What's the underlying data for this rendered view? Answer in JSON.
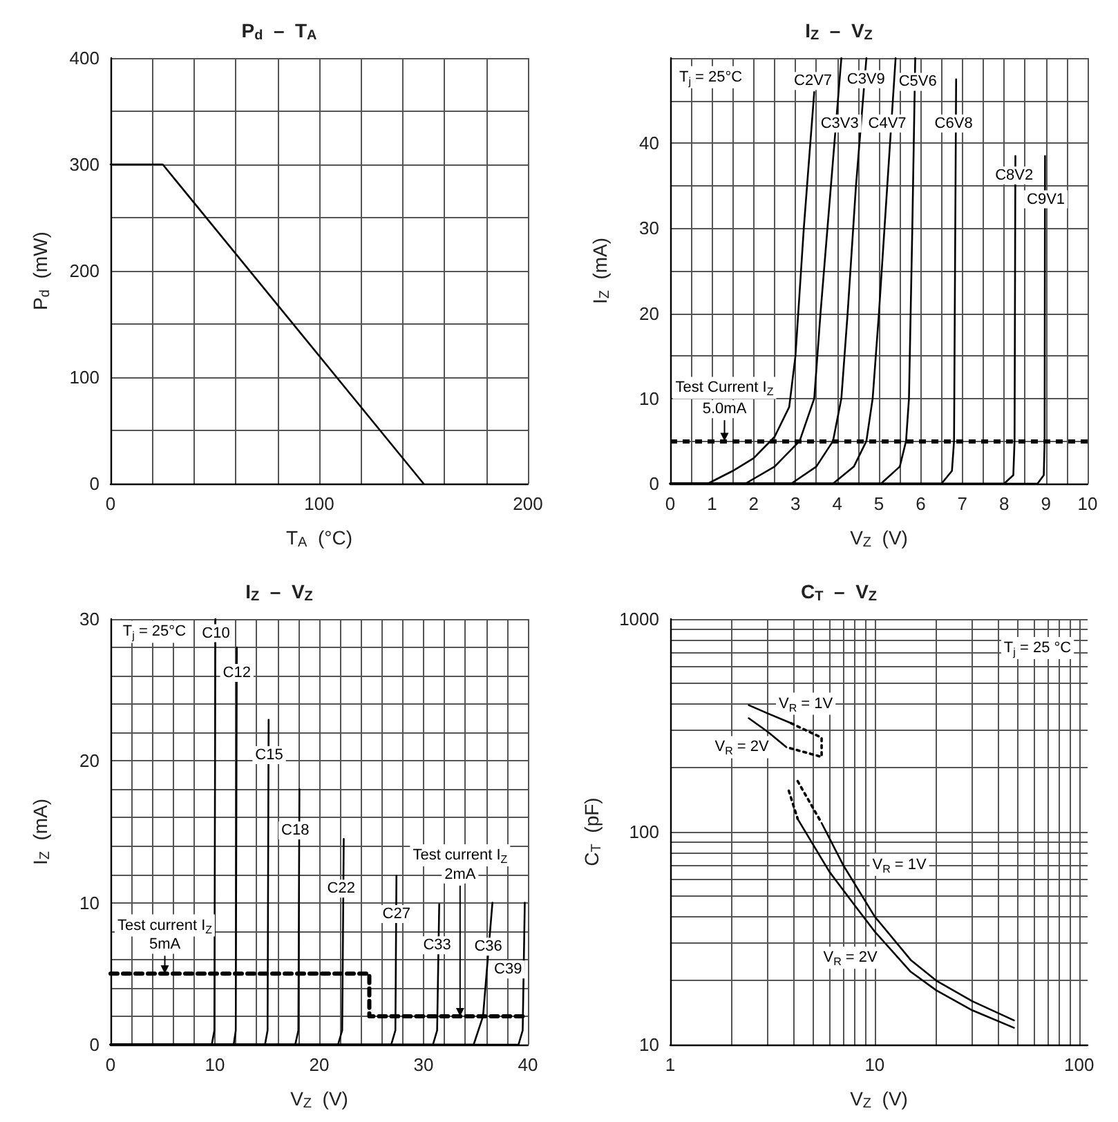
{
  "chart_data": [
    {
      "type": "line",
      "title": "P$_{d}$  –  T$_{A}$",
      "xlabel": "T$_{A}$  (°C)",
      "ylabel": "P$_{d}$  (mW)",
      "marker": "none",
      "grid": true,
      "series": [
        {
          "color": "#000000",
          "line_style": "solid",
          "x": [
            0,
            25,
            150
          ],
          "values": [
            300,
            300,
            0
          ]
        }
      ],
      "xlim": [
        0,
        200
      ],
      "xticks": [
        0,
        {
          "value": 20,
          "label": null
        },
        {
          "value": 40,
          "label": null
        },
        {
          "value": 60,
          "label": null
        },
        {
          "value": 80,
          "label": null
        },
        100,
        {
          "value": 120,
          "label": null
        },
        {
          "value": 140,
          "label": null
        },
        {
          "value": 160,
          "label": null
        },
        {
          "value": 180,
          "label": null
        },
        200
      ],
      "ylim": [
        0,
        400
      ],
      "yticks": [
        0,
        {
          "value": 50,
          "label": null
        },
        100,
        {
          "value": 150,
          "label": null
        },
        200,
        {
          "value": 250,
          "label": null
        },
        300,
        {
          "value": 350,
          "label": null
        },
        400
      ]
    },
    {
      "type": "line",
      "title": "I$_{Z}$  –  V$_{Z}$",
      "xlabel": "V$_{Z}$  (V)",
      "ylabel": "I$_{Z}$  (mA)",
      "marker": "none",
      "grid": true,
      "series": [
        {
          "color": "#000000",
          "line_style": "solid",
          "x": [
            0,
            0.9,
            1.5,
            2.0,
            2.5,
            2.85,
            3.0,
            3.2,
            3.45
          ],
          "values": [
            0,
            0,
            1.5,
            3,
            5.5,
            9,
            15,
            30,
            46
          ]
        },
        {
          "color": "#000000",
          "line_style": "solid",
          "x": [
            0,
            1.8,
            2.5,
            3.1,
            3.45,
            3.6,
            3.85,
            4.1
          ],
          "values": [
            0,
            0,
            2,
            5,
            10,
            20,
            35,
            50
          ]
        },
        {
          "color": "#000000",
          "line_style": "solid",
          "x": [
            0,
            2.9,
            3.5,
            3.9,
            4.1,
            4.25,
            4.45,
            4.7
          ],
          "values": [
            0,
            0,
            2,
            5,
            10,
            20,
            35,
            50
          ]
        },
        {
          "color": "#000000",
          "line_style": "solid",
          "x": [
            0,
            3.9,
            4.4,
            4.7,
            4.85,
            5.0,
            5.2,
            5.4
          ],
          "values": [
            0,
            0,
            2,
            5,
            10,
            20,
            35,
            50
          ]
        },
        {
          "color": "#000000",
          "line_style": "solid",
          "x": [
            0,
            5.05,
            5.5,
            5.65,
            5.72,
            5.8,
            5.87
          ],
          "values": [
            0,
            0,
            2,
            5,
            10,
            30,
            50
          ]
        },
        {
          "color": "#000000",
          "line_style": "solid",
          "x": [
            0,
            6.5,
            6.75,
            6.8,
            6.85
          ],
          "values": [
            0,
            0,
            1.5,
            5,
            47.5
          ]
        },
        {
          "color": "#000000",
          "line_style": "solid",
          "x": [
            0,
            8.0,
            8.22,
            8.25,
            8.27
          ],
          "values": [
            0,
            0,
            1,
            5,
            38.5
          ]
        },
        {
          "color": "#000000",
          "line_style": "solid",
          "x": [
            0,
            8.8,
            8.95,
            8.97,
            8.98
          ],
          "values": [
            0,
            0,
            1,
            5,
            38.5
          ]
        }
      ],
      "ref_lines": [
        {
          "axis": "y",
          "value": 5,
          "line_style": "dashed",
          "color": "#000000"
        }
      ],
      "annotations": [
        "T$_{j}$ = 25°C",
        "Test Current I$_{Z}$",
        {
          "text": "5.0mA",
          "x": 1.3,
          "y": 5
        },
        {
          "text": "C2V7",
          "x": 3.42,
          "y": 47.3
        },
        {
          "text": "C3V3",
          "x": 4.06,
          "y": 42.3
        },
        {
          "text": "C3V9",
          "x": 4.69,
          "y": 47.5
        },
        {
          "text": "C4V7",
          "x": 5.2,
          "y": 42.3
        },
        {
          "text": "C5V6",
          "x": 5.93,
          "y": 47.2
        },
        {
          "text": "C6V8",
          "x": 6.79,
          "y": 42.3
        },
        {
          "text": "C8V2",
          "x": 8.24,
          "y": 36.2
        },
        {
          "text": "C9V1",
          "x": 9.0,
          "y": 33.4
        }
      ],
      "xlim": [
        0,
        10
      ],
      "xticks": [
        0,
        {
          "value": 0.5,
          "label": null
        },
        1,
        {
          "value": 1.5,
          "label": null
        },
        2,
        {
          "value": 2.5,
          "label": null
        },
        3,
        {
          "value": 3.5,
          "label": null
        },
        4,
        {
          "value": 4.5,
          "label": null
        },
        5,
        {
          "value": 5.5,
          "label": null
        },
        6,
        {
          "value": 6.5,
          "label": null
        },
        7,
        {
          "value": 7.5,
          "label": null
        },
        8,
        {
          "value": 8.5,
          "label": null
        },
        9,
        {
          "value": 9.5,
          "label": null
        },
        10
      ],
      "ylim": [
        0,
        50
      ],
      "yticks": [
        0,
        {
          "value": 5,
          "label": null
        },
        10,
        {
          "value": 15,
          "label": null
        },
        20,
        {
          "value": 25,
          "label": null
        },
        30,
        {
          "value": 35,
          "label": null
        },
        40,
        {
          "value": 45,
          "label": null
        },
        {
          "value": 50,
          "label": null
        }
      ]
    },
    {
      "type": "line",
      "title": "I$_{Z}$  –  V$_{Z}$",
      "xlabel": "V$_{Z}$  (V)",
      "ylabel": "I$_{Z}$  (mA)",
      "marker": "none",
      "grid": true,
      "series": [
        {
          "color": "#000000",
          "line_style": "solid",
          "x": [
            0,
            9.7,
            9.95,
            10.05
          ],
          "values": [
            0,
            0,
            1,
            30
          ]
        },
        {
          "color": "#000000",
          "line_style": "solid",
          "x": [
            0,
            11.8,
            12.0,
            12.1
          ],
          "values": [
            0,
            0,
            1,
            28
          ]
        },
        {
          "color": "#000000",
          "line_style": "solid",
          "x": [
            0,
            14.8,
            15.05,
            15.15
          ],
          "values": [
            0,
            0,
            1,
            22.9
          ]
        },
        {
          "color": "#000000",
          "line_style": "solid",
          "x": [
            0,
            17.7,
            18.0,
            18.1
          ],
          "values": [
            0,
            0,
            1,
            18
          ]
        },
        {
          "color": "#000000",
          "line_style": "solid",
          "x": [
            0,
            21.8,
            22.2,
            22.35
          ],
          "values": [
            0,
            0,
            1,
            14.5
          ]
        },
        {
          "color": "#000000",
          "line_style": "solid",
          "x": [
            0,
            26.9,
            27.3,
            27.4
          ],
          "values": [
            0,
            0,
            1,
            11.9
          ]
        },
        {
          "color": "#000000",
          "line_style": "solid",
          "x": [
            0,
            30.9,
            31.3,
            31.5
          ],
          "values": [
            0,
            0,
            1,
            9.9
          ]
        },
        {
          "color": "#000000",
          "line_style": "solid",
          "x": [
            0,
            34.8,
            35.7,
            36.6
          ],
          "values": [
            0,
            0,
            2,
            10
          ]
        },
        {
          "color": "#000000",
          "line_style": "solid",
          "x": [
            0,
            39.1,
            39.5,
            39.7
          ],
          "values": [
            0,
            0,
            1,
            10
          ]
        },
        {
          "color": "#000000",
          "line_style": "dashed",
          "x": [
            0,
            24.8,
            24.8,
            40
          ],
          "values": [
            5,
            5,
            2,
            2
          ]
        }
      ],
      "annotations": [
        "T$_{j}$ = 25°C",
        "Test current I$_{Z}$",
        {
          "text": "5mA",
          "x": 5.2,
          "y": 5
        },
        "Test current I$_{Z}$",
        {
          "text": "2mA",
          "x": 33.5,
          "y": 2
        },
        {
          "text": "C10",
          "x": 10.1,
          "y": 29
        },
        {
          "text": "C12",
          "x": 12.1,
          "y": 26.2
        },
        {
          "text": "C15",
          "x": 15.2,
          "y": 20.4
        },
        {
          "text": "C18",
          "x": 17.7,
          "y": 15.1
        },
        {
          "text": "C22",
          "x": 22.1,
          "y": 11
        },
        {
          "text": "C27",
          "x": 27.4,
          "y": 9.2
        },
        {
          "text": "C33",
          "x": 31.3,
          "y": 7
        },
        {
          "text": "C36",
          "x": 36.2,
          "y": 6.9
        },
        {
          "text": "C39",
          "x": 38.1,
          "y": 5.3
        }
      ],
      "xlim": [
        0,
        40
      ],
      "xticks": [
        0,
        {
          "value": 2,
          "label": null
        },
        {
          "value": 4,
          "label": null
        },
        {
          "value": 6,
          "label": null
        },
        {
          "value": 8,
          "label": null
        },
        10,
        {
          "value": 12,
          "label": null
        },
        {
          "value": 14,
          "label": null
        },
        {
          "value": 16,
          "label": null
        },
        {
          "value": 18,
          "label": null
        },
        20,
        {
          "value": 22,
          "label": null
        },
        {
          "value": 24,
          "label": null
        },
        {
          "value": 26,
          "label": null
        },
        {
          "value": 28,
          "label": null
        },
        30,
        {
          "value": 32,
          "label": null
        },
        {
          "value": 34,
          "label": null
        },
        {
          "value": 36,
          "label": null
        },
        {
          "value": 38,
          "label": null
        },
        40
      ],
      "ylim": [
        0,
        30
      ],
      "yticks": [
        0,
        {
          "value": 2,
          "label": null
        },
        {
          "value": 4,
          "label": null
        },
        {
          "value": 6,
          "label": null
        },
        {
          "value": 8,
          "label": null
        },
        10,
        {
          "value": 12,
          "label": null
        },
        {
          "value": 14,
          "label": null
        },
        {
          "value": 16,
          "label": null
        },
        {
          "value": 18,
          "label": null
        },
        20,
        {
          "value": 22,
          "label": null
        },
        {
          "value": 24,
          "label": null
        },
        {
          "value": 26,
          "label": null
        },
        {
          "value": 28,
          "label": null
        },
        30
      ]
    },
    {
      "type": "line",
      "title": "C$_{T}$  –  V$_{Z}$",
      "xlabel": "V$_{Z}$  (V)",
      "ylabel": "C$_{T}$  (pF)",
      "marker": "none",
      "grid": true,
      "log": "xy",
      "series": [
        {
          "color": "#000000",
          "line_style": "solid",
          "x": [
            2.42,
            3.0,
            3.9
          ],
          "values": [
            394,
            360,
            324
          ]
        },
        {
          "color": "#000000",
          "line_style": "dotted",
          "x": [
            3.9,
            5.5,
            5.5,
            3.7
          ],
          "values": [
            324,
            277,
            225,
            250
          ]
        },
        {
          "color": "#000000",
          "line_style": "solid",
          "x": [
            2.42,
            3.0,
            3.7
          ],
          "values": [
            342,
            295,
            250
          ]
        },
        {
          "color": "#000000",
          "line_style": "dotted",
          "x": [
            4.2,
            5.5
          ],
          "values": [
            173,
            110
          ]
        },
        {
          "color": "#000000",
          "line_style": "dotted",
          "x": [
            3.8,
            4.2
          ],
          "values": [
            156,
            115
          ]
        },
        {
          "color": "#000000",
          "line_style": "solid",
          "x": [
            5.5,
            7,
            10,
            15,
            20,
            30,
            48
          ],
          "values": [
            110,
            70,
            40,
            25,
            20,
            16,
            13
          ]
        },
        {
          "color": "#000000",
          "line_style": "solid",
          "x": [
            4.2,
            6,
            8,
            10,
            15,
            20,
            30,
            48
          ],
          "values": [
            115,
            65,
            45,
            34,
            22,
            18,
            14.5,
            12
          ]
        }
      ],
      "annotations": [
        {
          "text": "V$_{R}$ = 1V",
          "x": 4.6,
          "y": 400
        },
        {
          "text": "V$_{R}$ = 2V",
          "x": 2.24,
          "y": 250
        },
        {
          "text": "V$_{R}$ = 1V",
          "x": 13.2,
          "y": 70
        },
        {
          "text": "V$_{R}$ = 2V",
          "x": 7.6,
          "y": 25.6
        },
        "T$_{j}$ = 25 °C"
      ],
      "xlim": [
        1,
        110
      ],
      "xticks": [
        1,
        {
          "value": 2,
          "label": null
        },
        {
          "value": 3,
          "label": null
        },
        {
          "value": 4,
          "label": null
        },
        {
          "value": 5,
          "label": null
        },
        {
          "value": 6,
          "label": null
        },
        {
          "value": 7,
          "label": null
        },
        {
          "value": 8,
          "label": null
        },
        {
          "value": 9,
          "label": null
        },
        10,
        {
          "value": 20,
          "label": null
        },
        {
          "value": 30,
          "label": null
        },
        {
          "value": 40,
          "label": null
        },
        {
          "value": 50,
          "label": null
        },
        {
          "value": 60,
          "label": null
        },
        {
          "value": 70,
          "label": null
        },
        {
          "value": 80,
          "label": null
        },
        {
          "value": 90,
          "label": null
        },
        100
      ],
      "ylim": [
        10,
        1000
      ],
      "yticks": [
        10,
        {
          "value": 20,
          "label": null
        },
        {
          "value": 30,
          "label": null
        },
        {
          "value": 40,
          "label": null
        },
        {
          "value": 50,
          "label": null
        },
        {
          "value": 60,
          "label": null
        },
        {
          "value": 70,
          "label": null
        },
        {
          "value": 80,
          "label": null
        },
        {
          "value": 90,
          "label": null
        },
        100,
        {
          "value": 200,
          "label": null
        },
        {
          "value": 300,
          "label": null
        },
        {
          "value": 400,
          "label": null
        },
        {
          "value": 500,
          "label": null
        },
        {
          "value": 600,
          "label": null
        },
        {
          "value": 700,
          "label": null
        },
        {
          "value": 800,
          "label": null
        },
        {
          "value": 900,
          "label": null
        },
        1000
      ]
    }
  ]
}
